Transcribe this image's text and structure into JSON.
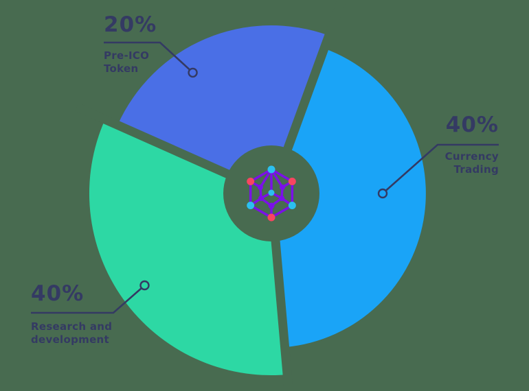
{
  "background_color": "#486B50",
  "text_color": "#343A63",
  "chart_data": {
    "type": "pie",
    "subtype": "exploded-donut-infographic",
    "legend_position": "none",
    "grid": false,
    "slices": [
      {
        "id": "pre_ico",
        "value": 20,
        "pct_label": "20%",
        "name_lines": [
          "Pre-ICO",
          "Token"
        ],
        "color": "#4A6FE6"
      },
      {
        "id": "currency",
        "value": 40,
        "pct_label": "40%",
        "name_lines": [
          "Currency",
          "Trading"
        ],
        "color": "#1AA4F7"
      },
      {
        "id": "research",
        "value": 40,
        "pct_label": "40%",
        "name_lines": [
          "Research and",
          "development"
        ],
        "color": "#2DD8A4"
      }
    ],
    "center_logo": {
      "name": "hexagon-network-logo",
      "line_color": "#7B10E8",
      "node_colors": {
        "cyan": "#2BC0F0",
        "red": "#F94560"
      }
    },
    "leader_style": {
      "line_color": "#343A63",
      "marker": "open-circle"
    }
  }
}
